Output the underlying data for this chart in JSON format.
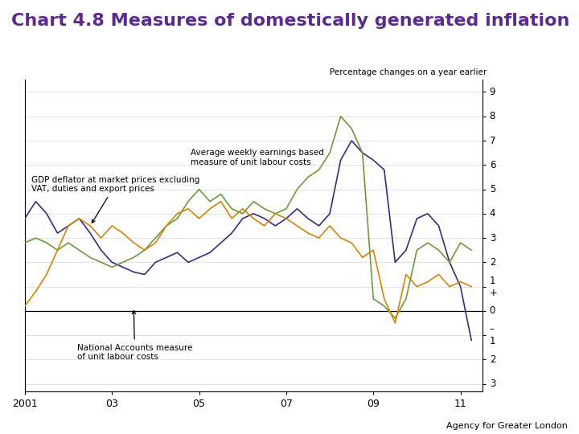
{
  "title": "Chart 4.8 Measures of domestically generated inflation",
  "title_color": "#5B2C8D",
  "title_fontsize": 16,
  "title_fontweight": "bold",
  "ylabel_text": "Percentage changes on a year earlier",
  "yticks": [
    9,
    8,
    7,
    6,
    5,
    4,
    3,
    2,
    1,
    0,
    -1,
    -2,
    -3
  ],
  "ylim": [
    -3.3,
    9.5
  ],
  "xlim_start": 2001.0,
  "xlim_end": 2011.5,
  "xtick_positions": [
    2001,
    2003,
    2005,
    2007,
    2009,
    2011
  ],
  "xtick_labels": [
    "2001",
    "03",
    "05",
    "07",
    "09",
    "11"
  ],
  "footer_text": "Agency for Greater London",
  "background_color": "#ffffff",
  "annotation1_text": "GDP deflator at market prices excluding\nVAT, duties and export prices",
  "annotation2_text": "Average weekly earnings based\nmeasure of unit labour costs",
  "annotation3_text": "National Accounts measure\nof unit labour costs",
  "line_purple": {
    "color": "#3B2A7A",
    "x": [
      2001.0,
      2001.25,
      2001.5,
      2001.75,
      2002.0,
      2002.25,
      2002.5,
      2002.75,
      2003.0,
      2003.25,
      2003.5,
      2003.75,
      2004.0,
      2004.25,
      2004.5,
      2004.75,
      2005.0,
      2005.25,
      2005.5,
      2005.75,
      2006.0,
      2006.25,
      2006.5,
      2006.75,
      2007.0,
      2007.25,
      2007.5,
      2007.75,
      2008.0,
      2008.25,
      2008.5,
      2008.75,
      2009.0,
      2009.25,
      2009.5,
      2009.75,
      2010.0,
      2010.25,
      2010.5,
      2010.75,
      2011.0,
      2011.25
    ],
    "y": [
      3.8,
      4.5,
      4.0,
      3.2,
      3.5,
      3.8,
      3.2,
      2.5,
      2.0,
      1.8,
      1.6,
      1.5,
      2.0,
      2.2,
      2.4,
      2.0,
      2.2,
      2.4,
      2.8,
      3.2,
      3.8,
      4.0,
      3.8,
      3.5,
      3.8,
      4.2,
      3.8,
      3.5,
      4.0,
      6.2,
      7.0,
      6.5,
      6.2,
      5.8,
      2.0,
      2.5,
      3.8,
      4.0,
      3.5,
      2.0,
      1.0,
      -1.2
    ]
  },
  "line_green": {
    "color": "#6A9B3A",
    "x": [
      2001.0,
      2001.25,
      2001.5,
      2001.75,
      2002.0,
      2002.25,
      2002.5,
      2002.75,
      2003.0,
      2003.25,
      2003.5,
      2003.75,
      2004.0,
      2004.25,
      2004.5,
      2004.75,
      2005.0,
      2005.25,
      2005.5,
      2005.75,
      2006.0,
      2006.25,
      2006.5,
      2006.75,
      2007.0,
      2007.25,
      2007.5,
      2007.75,
      2008.0,
      2008.25,
      2008.5,
      2008.75,
      2009.0,
      2009.25,
      2009.5,
      2009.75,
      2010.0,
      2010.25,
      2010.5,
      2010.75,
      2011.0,
      2011.25
    ],
    "y": [
      2.8,
      3.0,
      2.8,
      2.5,
      2.8,
      2.5,
      2.2,
      2.0,
      1.8,
      2.0,
      2.2,
      2.5,
      3.0,
      3.5,
      3.8,
      4.5,
      5.0,
      4.5,
      4.8,
      4.2,
      4.0,
      4.5,
      4.2,
      4.0,
      4.2,
      5.0,
      5.5,
      5.8,
      6.5,
      8.0,
      7.5,
      6.5,
      0.5,
      0.2,
      -0.3,
      0.5,
      2.5,
      2.8,
      2.5,
      2.0,
      2.8,
      2.5
    ]
  },
  "line_orange": {
    "color": "#D4820A",
    "x": [
      2001.0,
      2001.25,
      2001.5,
      2001.75,
      2002.0,
      2002.25,
      2002.5,
      2002.75,
      2003.0,
      2003.25,
      2003.5,
      2003.75,
      2004.0,
      2004.25,
      2004.5,
      2004.75,
      2005.0,
      2005.25,
      2005.5,
      2005.75,
      2006.0,
      2006.25,
      2006.5,
      2006.75,
      2007.0,
      2007.25,
      2007.5,
      2007.75,
      2008.0,
      2008.25,
      2008.5,
      2008.75,
      2009.0,
      2009.25,
      2009.5,
      2009.75,
      2010.0,
      2010.25,
      2010.5,
      2010.75,
      2011.0,
      2011.25
    ],
    "y": [
      0.2,
      0.8,
      1.5,
      2.5,
      3.5,
      3.8,
      3.5,
      3.0,
      3.5,
      3.2,
      2.8,
      2.5,
      2.8,
      3.5,
      4.0,
      4.2,
      3.8,
      4.2,
      4.5,
      3.8,
      4.2,
      3.8,
      3.5,
      4.0,
      3.8,
      3.5,
      3.2,
      3.0,
      3.5,
      3.0,
      2.8,
      2.2,
      2.5,
      0.5,
      -0.5,
      1.5,
      1.0,
      1.2,
      1.5,
      1.0,
      1.2,
      1.0
    ]
  }
}
